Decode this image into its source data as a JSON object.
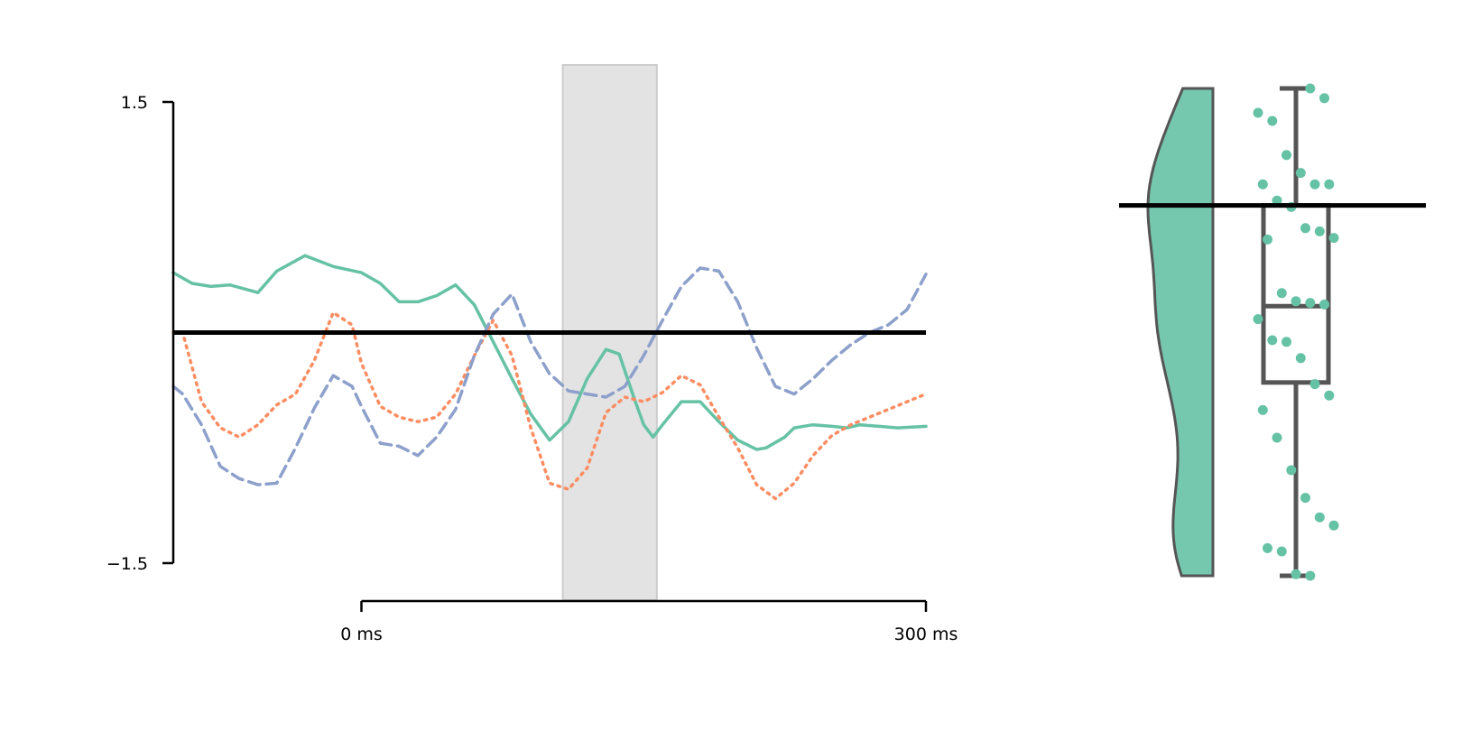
{
  "chart_data": [
    {
      "type": "line",
      "title": "",
      "xlabel": "",
      "ylabel": "",
      "x_ticks": [
        {
          "value": 0,
          "label": "0 ms"
        },
        {
          "value": 300,
          "label": "300 ms"
        }
      ],
      "y_ticks": [
        {
          "value": 1.5,
          "label": "1.5"
        },
        {
          "value": -1.5,
          "label": "−1.5"
        }
      ],
      "xlim": [
        -100,
        300
      ],
      "ylim": [
        -1.5,
        1.5
      ],
      "reference_line_y": 0,
      "shaded_interval": [
        107,
        157
      ],
      "grid": false,
      "series": [
        {
          "color": "#66c2a5",
          "style": "solid",
          "x": [
            -100,
            -90,
            -80,
            -70,
            -55,
            -45,
            -30,
            -15,
            0,
            10,
            20,
            30,
            40,
            50,
            60,
            70,
            80,
            90,
            100,
            110,
            120,
            130,
            137,
            145,
            150,
            155,
            160,
            170,
            180,
            190,
            200,
            210,
            215,
            225,
            230,
            240,
            250,
            258,
            265,
            275,
            285,
            300
          ],
          "y": [
            0.39,
            0.32,
            0.3,
            0.31,
            0.26,
            0.4,
            0.5,
            0.43,
            0.39,
            0.32,
            0.2,
            0.2,
            0.24,
            0.31,
            0.18,
            -0.06,
            -0.3,
            -0.53,
            -0.7,
            -0.58,
            -0.3,
            -0.11,
            -0.14,
            -0.43,
            -0.6,
            -0.68,
            -0.6,
            -0.45,
            -0.45,
            -0.58,
            -0.7,
            -0.76,
            -0.75,
            -0.68,
            -0.62,
            -0.6,
            -0.61,
            -0.62,
            -0.6,
            -0.61,
            -0.62,
            -0.61
          ]
        },
        {
          "color": "#fc8d62",
          "style": "dotted",
          "x": [
            -100,
            -95,
            -85,
            -75,
            -65,
            -55,
            -45,
            -35,
            -25,
            -15,
            -5,
            0,
            10,
            20,
            30,
            40,
            50,
            60,
            70,
            80,
            90,
            100,
            110,
            120,
            130,
            140,
            150,
            160,
            170,
            180,
            190,
            200,
            210,
            220,
            230,
            240,
            250,
            260,
            270,
            280,
            290,
            300
          ],
          "y": [
            0.0,
            0.0,
            -0.45,
            -0.62,
            -0.68,
            -0.6,
            -0.47,
            -0.4,
            -0.18,
            0.13,
            0.05,
            -0.2,
            -0.48,
            -0.55,
            -0.58,
            -0.55,
            -0.4,
            -0.15,
            0.08,
            -0.15,
            -0.62,
            -0.98,
            -1.02,
            -0.88,
            -0.52,
            -0.42,
            -0.45,
            -0.39,
            -0.28,
            -0.34,
            -0.55,
            -0.75,
            -0.99,
            -1.08,
            -0.98,
            -0.8,
            -0.67,
            -0.6,
            -0.55,
            -0.5,
            -0.45,
            -0.4
          ]
        },
        {
          "color": "#8da0cb",
          "style": "dashed",
          "x": [
            -100,
            -95,
            -85,
            -75,
            -65,
            -55,
            -45,
            -35,
            -25,
            -15,
            -5,
            0,
            10,
            20,
            30,
            40,
            50,
            60,
            70,
            80,
            90,
            100,
            103,
            110,
            120,
            130,
            140,
            150,
            160,
            170,
            180,
            190,
            200,
            210,
            220,
            230,
            240,
            250,
            260,
            270,
            280,
            290,
            300
          ],
          "y": [
            -0.35,
            -0.4,
            -0.6,
            -0.87,
            -0.95,
            -0.99,
            -0.98,
            -0.75,
            -0.49,
            -0.28,
            -0.35,
            -0.48,
            -0.72,
            -0.74,
            -0.8,
            -0.68,
            -0.5,
            -0.15,
            0.12,
            0.25,
            -0.06,
            -0.27,
            -0.3,
            -0.38,
            -0.4,
            -0.42,
            -0.35,
            -0.15,
            0.08,
            0.3,
            0.42,
            0.4,
            0.2,
            -0.1,
            -0.35,
            -0.4,
            -0.3,
            -0.18,
            -0.08,
            0.0,
            0.05,
            0.15,
            0.38
          ]
        }
      ]
    },
    {
      "type": "raincloud",
      "title": "",
      "xlabel": "",
      "ylabel": "",
      "ylim": [
        -1.5,
        1.5
      ],
      "reference_line_y": 0,
      "grid": false,
      "colors": {
        "fill": "#66c2a5",
        "outline": "#555555",
        "points": "#66c2a5"
      },
      "box": {
        "min": -1.5,
        "q1": -0.31,
        "median": 0.16,
        "q3": 0.78,
        "max": 1.5
      },
      "points": [
        1.5,
        1.44,
        1.35,
        1.3,
        1.09,
        0.98,
        0.91,
        0.91,
        0.91,
        0.81,
        0.77,
        0.64,
        0.62,
        0.58,
        0.57,
        0.24,
        0.19,
        0.18,
        0.17,
        0.08,
        -0.05,
        -0.06,
        -0.16,
        -0.32,
        -0.39,
        -0.48,
        -0.65,
        -0.85,
        -1.02,
        -1.14,
        -1.19,
        -1.33,
        -1.35,
        -1.49,
        -1.5
      ]
    }
  ]
}
